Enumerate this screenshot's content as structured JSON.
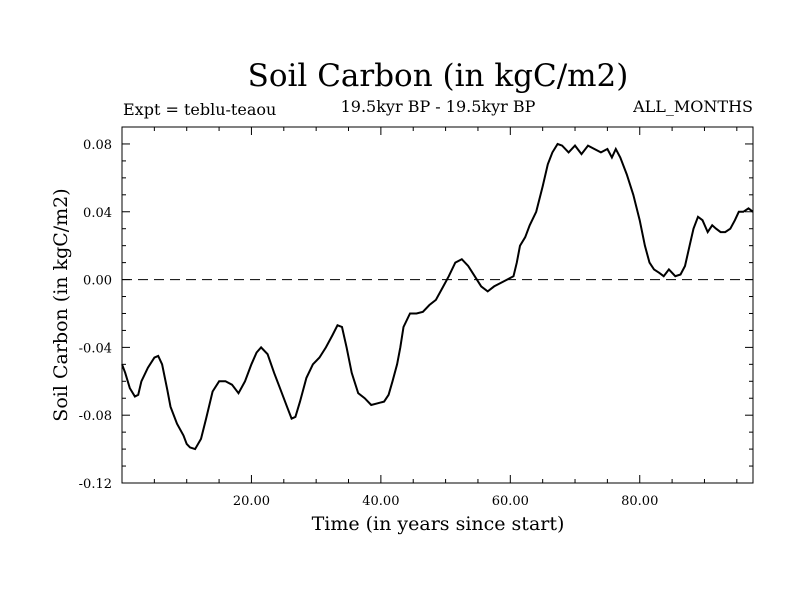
{
  "chart_data": {
    "type": "line",
    "title": "Soil Carbon (in kgC/m2)",
    "subtitle": "19.5kyr BP - 19.5kyr BP",
    "left_label": "Expt = teblu-teaou",
    "right_label": "ALL_MONTHS",
    "xlabel": "Time (in years since start)",
    "ylabel": "Soil Carbon (in kgC/m2)",
    "xlim": [
      0,
      97.5
    ],
    "ylim": [
      -0.12,
      0.09
    ],
    "yticks": [
      -0.12,
      -0.08,
      -0.04,
      0.0,
      0.04,
      0.08
    ],
    "ytick_labels": [
      "-0.12",
      "-0.08",
      "-0.04",
      "0.00",
      "0.04",
      "0.08"
    ],
    "xticks": [
      20,
      40,
      60,
      80
    ],
    "xtick_labels": [
      "20.00",
      "40.00",
      "60.00",
      "80.00"
    ],
    "reference_line": 0.0,
    "series": [
      {
        "x": [
          0,
          0.5,
          1.2,
          2.0,
          2.5,
          3.0,
          4.0,
          5.0,
          5.6,
          6.2,
          7.0,
          7.5,
          8.5,
          9.5,
          10.0,
          10.5,
          11.3,
          12.2,
          13.0,
          14.0,
          15.0,
          16.0,
          17.0,
          18.0,
          19.0,
          20.0,
          20.8,
          21.5,
          22.5,
          23.5,
          24.5,
          25.5,
          26.2,
          26.8,
          27.5,
          28.5,
          29.5,
          30.5,
          31.5,
          32.5,
          33.3,
          34.0,
          34.7,
          35.5,
          36.5,
          37.5,
          38.5,
          39.5,
          40.5,
          41.2,
          41.8,
          42.5,
          43.0,
          43.5,
          44.5,
          45.5,
          46.5,
          47.5,
          48.5,
          49.5,
          50.5,
          51.5,
          52.5,
          53.5,
          54.5,
          55.5,
          56.5,
          57.5,
          58.5,
          59.5,
          60.5,
          61.0,
          61.5,
          62.3,
          63.0,
          64.0,
          65.0,
          65.8,
          66.5,
          67.3,
          68.0,
          69.0,
          70.0,
          71.0,
          72.0,
          73.0,
          74.0,
          75.0,
          75.7,
          76.3,
          77.0,
          78.0,
          79.0,
          80.0,
          80.8,
          81.5,
          82.2,
          83.0,
          83.7,
          84.5,
          85.5,
          86.3,
          87.0,
          87.7,
          88.3,
          89.0,
          89.7,
          90.5,
          91.2,
          91.8,
          92.5,
          93.2,
          94.0,
          94.7,
          95.3,
          96.0,
          96.8,
          97.5
        ],
        "y": [
          -0.05,
          -0.055,
          -0.064,
          -0.069,
          -0.068,
          -0.06,
          -0.052,
          -0.046,
          -0.045,
          -0.05,
          -0.065,
          -0.075,
          -0.085,
          -0.092,
          -0.097,
          -0.099,
          -0.1,
          -0.094,
          -0.082,
          -0.066,
          -0.06,
          -0.06,
          -0.062,
          -0.067,
          -0.06,
          -0.05,
          -0.043,
          -0.04,
          -0.044,
          -0.055,
          -0.065,
          -0.075,
          -0.082,
          -0.081,
          -0.072,
          -0.058,
          -0.05,
          -0.046,
          -0.04,
          -0.033,
          -0.027,
          -0.028,
          -0.04,
          -0.055,
          -0.067,
          -0.07,
          -0.074,
          -0.073,
          -0.072,
          -0.068,
          -0.06,
          -0.05,
          -0.04,
          -0.028,
          -0.02,
          -0.02,
          -0.019,
          -0.015,
          -0.012,
          -0.005,
          0.002,
          0.01,
          0.012,
          0.008,
          0.002,
          -0.004,
          -0.007,
          -0.004,
          -0.002,
          0.0,
          0.002,
          0.01,
          0.02,
          0.025,
          0.032,
          0.04,
          0.055,
          0.068,
          0.075,
          0.08,
          0.079,
          0.075,
          0.079,
          0.074,
          0.079,
          0.077,
          0.075,
          0.077,
          0.072,
          0.077,
          0.072,
          0.062,
          0.05,
          0.035,
          0.02,
          0.01,
          0.006,
          0.004,
          0.002,
          0.006,
          0.002,
          0.003,
          0.008,
          0.02,
          0.03,
          0.037,
          0.035,
          0.028,
          0.032,
          0.03,
          0.028,
          0.028,
          0.03,
          0.035,
          0.04,
          0.04,
          0.042,
          0.04
        ]
      }
    ]
  }
}
